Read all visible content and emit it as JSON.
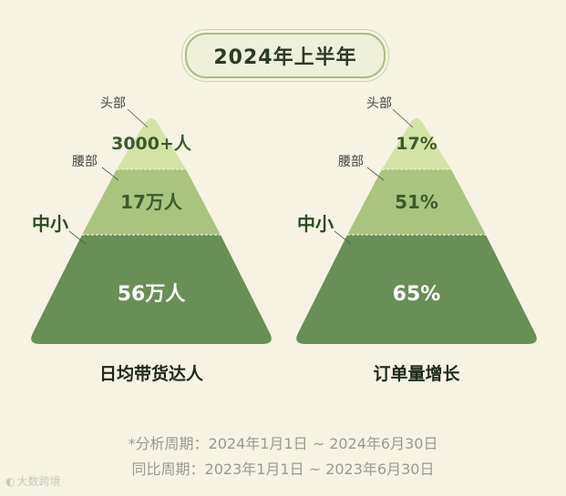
{
  "title": "2024年上半年",
  "left": {
    "head_label": "头部",
    "waist_label": "腰部",
    "mid_label": "中小",
    "top_value": "3000+人",
    "mid_value": "17万人",
    "bottom_value": "56万人",
    "caption": "日均带货达人"
  },
  "right": {
    "head_label": "头部",
    "waist_label": "腰部",
    "mid_label": "中小",
    "top_value": "17%",
    "mid_value": "51%",
    "bottom_value": "65%",
    "caption": "订单量增长"
  },
  "notes": {
    "line1": "*分析周期：2024年1月1日 ~ 2024年6月30日",
    "line2": "同比周期：2023年1月1日 ~ 2023年6月30日"
  },
  "watermark": "大数跨境",
  "colors": {
    "tier_top": "#d4e3a6",
    "tier_mid": "#a9c47f",
    "tier_bottom": "#688f56",
    "background": "#f6f3e3"
  }
}
